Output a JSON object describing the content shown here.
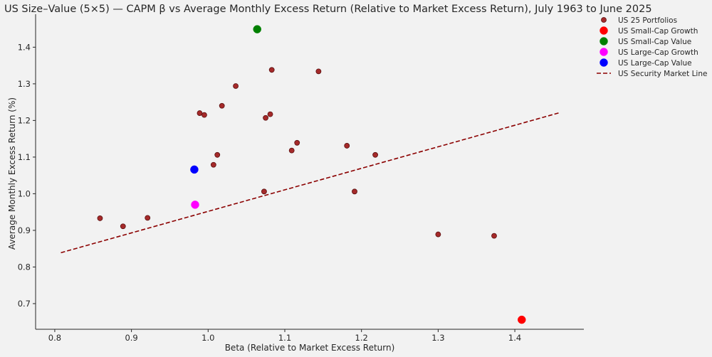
{
  "chart_data": {
    "type": "scatter",
    "title": "US Size–Value (5×5) — CAPM β vs Average Monthly Excess Return (Relative to Market Excess Return), July 1963 to June 2025",
    "xlabel": "Beta (Relative to Market Excess Return)",
    "ylabel": "Average Monthly Excess Return (%)",
    "xlim": [
      0.775,
      1.49
    ],
    "ylim": [
      0.63,
      1.49
    ],
    "xticks": [
      "0.8",
      "0.9",
      "1.0",
      "1.1",
      "1.2",
      "1.3",
      "1.4"
    ],
    "yticks": [
      "0.7",
      "0.8",
      "0.9",
      "1.0",
      "1.1",
      "1.2",
      "1.3",
      "1.4"
    ],
    "grid": false,
    "legend_position": "outside-right",
    "series": [
      {
        "name": "US 25 Portfolios",
        "color": "#a52a2a",
        "points": [
          {
            "x": 0.859,
            "y": 0.933
          },
          {
            "x": 0.889,
            "y": 0.911
          },
          {
            "x": 0.921,
            "y": 0.934
          },
          {
            "x": 0.989,
            "y": 1.22
          },
          {
            "x": 0.995,
            "y": 1.215
          },
          {
            "x": 1.007,
            "y": 1.079
          },
          {
            "x": 1.012,
            "y": 1.106
          },
          {
            "x": 1.018,
            "y": 1.24
          },
          {
            "x": 1.036,
            "y": 1.294
          },
          {
            "x": 1.073,
            "y": 1.006
          },
          {
            "x": 1.075,
            "y": 1.207
          },
          {
            "x": 1.081,
            "y": 1.217
          },
          {
            "x": 1.083,
            "y": 1.338
          },
          {
            "x": 1.109,
            "y": 1.118
          },
          {
            "x": 1.116,
            "y": 1.139
          },
          {
            "x": 1.144,
            "y": 1.334
          },
          {
            "x": 1.181,
            "y": 1.131
          },
          {
            "x": 1.191,
            "y": 1.006
          },
          {
            "x": 1.218,
            "y": 1.106
          },
          {
            "x": 1.3,
            "y": 0.889
          },
          {
            "x": 1.373,
            "y": 0.885
          }
        ]
      },
      {
        "name": "US Small-Cap Growth",
        "color": "#ff0000",
        "points": [
          {
            "x": 1.409,
            "y": 0.656
          }
        ]
      },
      {
        "name": "US Small-Cap Value",
        "color": "#008000",
        "points": [
          {
            "x": 1.064,
            "y": 1.449
          }
        ]
      },
      {
        "name": "US Large-Cap Growth",
        "color": "#ff00ff",
        "points": [
          {
            "x": 0.983,
            "y": 0.97
          }
        ]
      },
      {
        "name": "US Large-Cap Value",
        "color": "#0000ff",
        "points": [
          {
            "x": 0.982,
            "y": 1.066
          }
        ]
      }
    ],
    "line": {
      "name": "US Security Market Line",
      "color": "#8b0000",
      "style": "dashed",
      "x": [
        0.808,
        1.458
      ],
      "y": [
        0.839,
        1.221
      ]
    }
  }
}
